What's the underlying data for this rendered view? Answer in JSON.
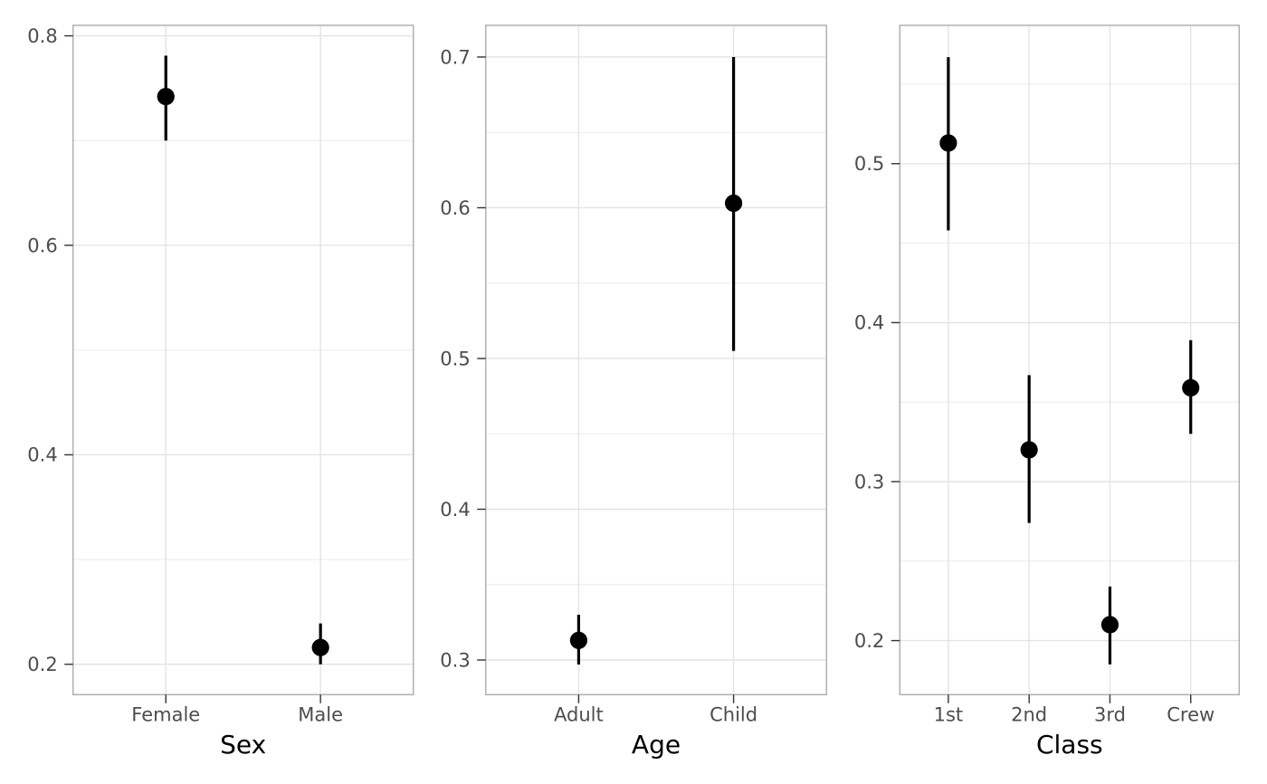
{
  "figure": {
    "kind": "faceted-pointrange-plot",
    "facets": [
      "Sex",
      "Age",
      "Class"
    ]
  },
  "style": {
    "background": "#ffffff",
    "panel_background": "#ffffff",
    "panel_border": "#b0b0b0",
    "grid_major": "#e4e4e4",
    "grid_minor": "#ebebeb",
    "tick_mark": "#333333",
    "tick_label_color": "#4d4d4d",
    "axis_title_color": "#000000",
    "point_color": "#000000"
  },
  "chart_data": [
    {
      "type": "pointrange",
      "xlabel": "Sex",
      "ylabel": "",
      "categories": [
        "Female",
        "Male"
      ],
      "points": [
        {
          "category": "Female",
          "estimate": 0.742,
          "lower": 0.7,
          "upper": 0.781
        },
        {
          "category": "Male",
          "estimate": 0.216,
          "lower": 0.2,
          "upper": 0.239
        }
      ],
      "ylim": [
        0.171,
        0.81
      ],
      "y_major_ticks": [
        0.2,
        0.4,
        0.6,
        0.8
      ],
      "y_tick_labels": [
        "0.2",
        "0.4",
        "0.6",
        "0.8"
      ],
      "y_minor_ticks": [
        0.3,
        0.5,
        0.7
      ],
      "grid": "on",
      "legend": "none"
    },
    {
      "type": "pointrange",
      "xlabel": "Age",
      "ylabel": "",
      "categories": [
        "Adult",
        "Child"
      ],
      "points": [
        {
          "category": "Adult",
          "estimate": 0.313,
          "lower": 0.297,
          "upper": 0.33
        },
        {
          "category": "Child",
          "estimate": 0.603,
          "lower": 0.505,
          "upper": 0.7
        }
      ],
      "ylim": [
        0.277,
        0.721
      ],
      "y_major_ticks": [
        0.3,
        0.4,
        0.5,
        0.6,
        0.7
      ],
      "y_tick_labels": [
        "0.3",
        "0.4",
        "0.5",
        "0.6",
        "0.7"
      ],
      "y_minor_ticks": [
        0.35,
        0.45,
        0.55,
        0.65
      ],
      "grid": "on",
      "legend": "none"
    },
    {
      "type": "pointrange",
      "xlabel": "Class",
      "ylabel": "",
      "categories": [
        "1st",
        "2nd",
        "3rd",
        "Crew"
      ],
      "points": [
        {
          "category": "1st",
          "estimate": 0.513,
          "lower": 0.458,
          "upper": 0.567
        },
        {
          "category": "2nd",
          "estimate": 0.32,
          "lower": 0.274,
          "upper": 0.367
        },
        {
          "category": "3rd",
          "estimate": 0.21,
          "lower": 0.185,
          "upper": 0.234
        },
        {
          "category": "Crew",
          "estimate": 0.359,
          "lower": 0.33,
          "upper": 0.389
        }
      ],
      "ylim": [
        0.166,
        0.587
      ],
      "y_major_ticks": [
        0.2,
        0.3,
        0.4,
        0.5
      ],
      "y_tick_labels": [
        "0.2",
        "0.3",
        "0.4",
        "0.5"
      ],
      "y_minor_ticks": [
        0.25,
        0.35,
        0.45,
        0.55
      ],
      "grid": "on",
      "legend": "none"
    }
  ]
}
